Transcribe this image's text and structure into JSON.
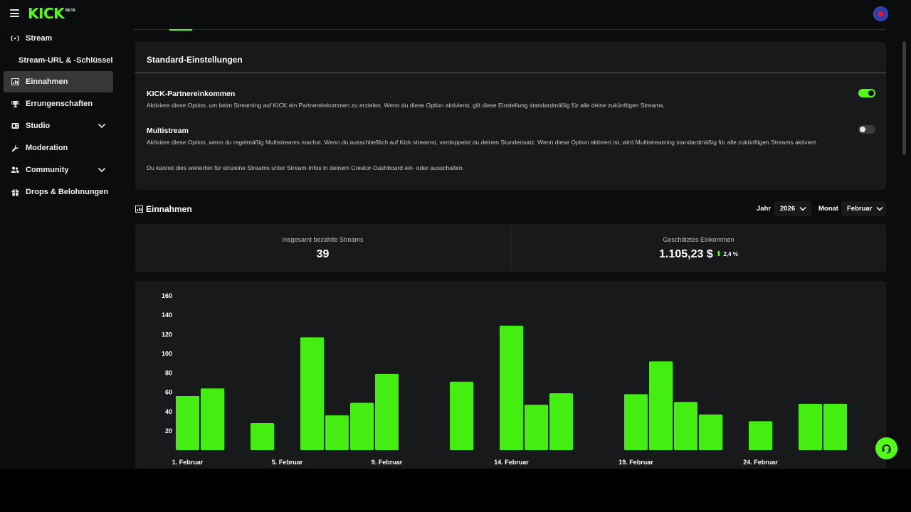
{
  "brand": {
    "logo_text": "KICK",
    "beta_badge": "BETA",
    "accent": "#53fc18"
  },
  "sidebar": {
    "items": [
      {
        "label": "Stream",
        "icon": "broadcast-icon"
      },
      {
        "label": "Stream-URL & -Schlüssel",
        "icon": ""
      },
      {
        "label": "Einnahmen",
        "icon": "chart-icon",
        "active": true
      },
      {
        "label": "Errungenschaften",
        "icon": "trophy-icon"
      },
      {
        "label": "Studio",
        "icon": "studio-icon",
        "expandable": true
      },
      {
        "label": "Moderation",
        "icon": "wrench-icon"
      },
      {
        "label": "Community",
        "icon": "users-icon",
        "expandable": true
      },
      {
        "label": "Drops & Belohnungen",
        "icon": "gift-icon"
      }
    ]
  },
  "settings": {
    "title": "Standard-Einstellungen",
    "partner": {
      "title": "KICK-Partnereinkommen",
      "description": "Aktiviere diese Option, um beim Streaming auf KICK ein Partnereinkommen zu erzielen. Wenn du diese Option aktivierst, gilt diese Einstellung standardmäßig für alle deine zukünftigen Streams.",
      "enabled": true
    },
    "multistream": {
      "title": "Multistream",
      "description": "Aktiviere diese Option, wenn du regelmäßig Multistreams machst. Wenn du ausschließlich auf Kick streamst, verdoppelst du deinen Stundensatz. Wenn diese Option aktiviert ist, wird Multistreaming standardmäßig für alle zukünftigen Streams aktiviert.",
      "enabled": false
    },
    "footnote": "Du kannst dies weiterhin für einzelne Streams unter Stream-Infos in deinem Creator-Dashboard ein- oder ausschalten."
  },
  "earnings": {
    "title": "Einnahmen",
    "year_label": "Jahr",
    "year_value": "2026",
    "month_label": "Monat",
    "month_value": "Februar",
    "total_streams_label": "Insgesamt bezahlte Streams",
    "total_streams_value": "39",
    "estimated_income_label": "Geschätztes Einkommen",
    "estimated_income_value": "1.105,23 $",
    "trend_value": "2,4 %"
  },
  "chart_data": {
    "type": "bar",
    "categories": [
      "1",
      "2",
      "3",
      "4",
      "5",
      "6",
      "7",
      "8",
      "9",
      "10",
      "11",
      "12",
      "13",
      "14",
      "15",
      "16",
      "17",
      "18",
      "19",
      "20",
      "21",
      "22",
      "23",
      "24",
      "25",
      "26",
      "27",
      "28"
    ],
    "x_tick_labels": [
      {
        "index": 0,
        "label": "1. Februar"
      },
      {
        "index": 4,
        "label": "5. Februar"
      },
      {
        "index": 8,
        "label": "9. Februar"
      },
      {
        "index": 13,
        "label": "14. Februar"
      },
      {
        "index": 18,
        "label": "19. Februar"
      },
      {
        "index": 23,
        "label": "24. Februar"
      }
    ],
    "values": [
      56,
      64,
      0,
      28,
      0,
      117,
      36,
      49,
      79,
      0,
      0,
      71,
      0,
      129,
      47,
      59,
      0,
      0,
      58,
      92,
      50,
      37,
      0,
      30,
      0,
      48,
      48,
      0
    ],
    "y_ticks": [
      20,
      40,
      60,
      80,
      100,
      120,
      140,
      160
    ],
    "ylim": [
      0,
      160
    ],
    "bar_color": "#44ee11",
    "grid": false
  }
}
